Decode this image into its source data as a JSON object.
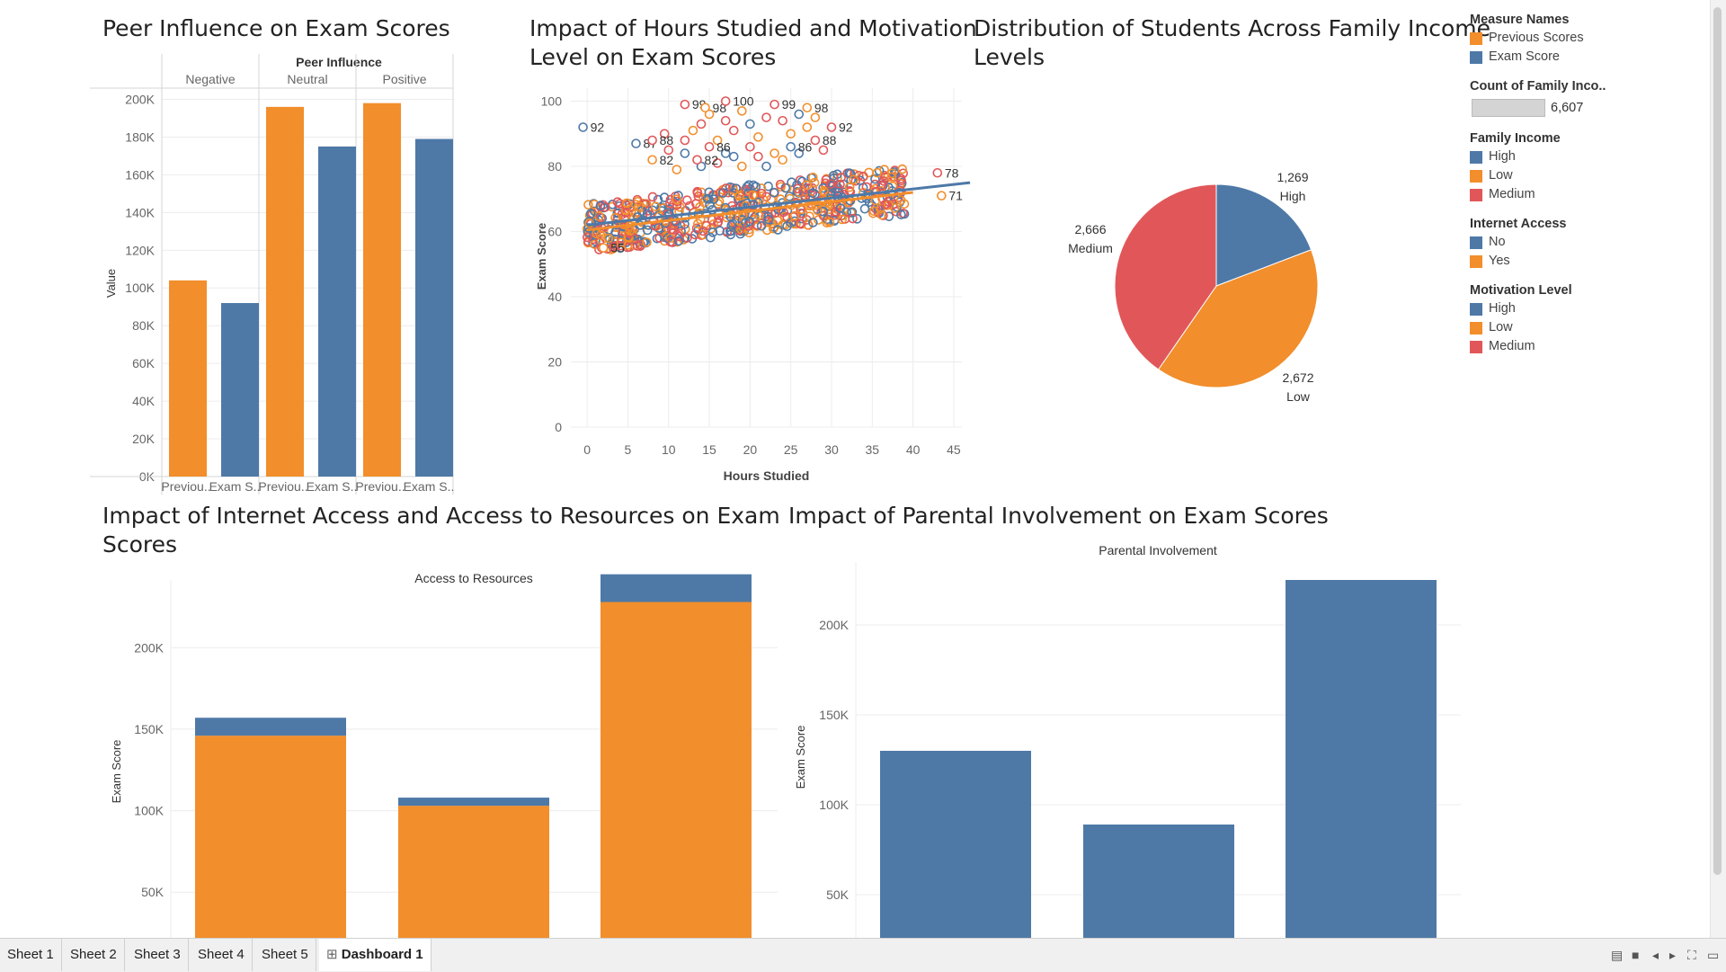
{
  "titles": {
    "peer": "Peer Influence on Exam Scores",
    "hours_line1": "Impact of Hours Studied and Motivation",
    "hours_line2": "Level on Exam Scores",
    "income_line1": "Distribution of Students Across Family Income",
    "income_line2": "Levels",
    "internet_line1": "Impact of Internet Access and Access to Resources on Exam",
    "internet_line2": "Scores",
    "parental": "Impact of Parental Involvement on Exam Scores"
  },
  "colors": {
    "blue": "#4e79a7",
    "orange": "#f28e2b",
    "red": "#e15759",
    "grid": "#ececec",
    "axis": "#d6d6d6",
    "text": "#666666"
  },
  "legend": {
    "measure_names": {
      "title": "Measure Names",
      "items": [
        {
          "label": "Previous Scores",
          "color": "#f28e2b"
        },
        {
          "label": "Exam Score",
          "color": "#4e79a7"
        }
      ]
    },
    "count": {
      "title": "Count of Family Inco..",
      "value": "6,607"
    },
    "family_income": {
      "title": "Family Income",
      "items": [
        {
          "label": "High",
          "color": "#4e79a7"
        },
        {
          "label": "Low",
          "color": "#f28e2b"
        },
        {
          "label": "Medium",
          "color": "#e15759"
        }
      ]
    },
    "internet_access": {
      "title": "Internet Access",
      "items": [
        {
          "label": "No",
          "color": "#4e79a7"
        },
        {
          "label": "Yes",
          "color": "#f28e2b"
        }
      ]
    },
    "motivation": {
      "title": "Motivation Level",
      "items": [
        {
          "label": "High",
          "color": "#4e79a7"
        },
        {
          "label": "Low",
          "color": "#f28e2b"
        },
        {
          "label": "Medium",
          "color": "#e15759"
        }
      ]
    }
  },
  "tabs": [
    {
      "label": "Sheet 1",
      "active": false
    },
    {
      "label": "Sheet 2",
      "active": false
    },
    {
      "label": "Sheet 3",
      "active": false
    },
    {
      "label": "Sheet 4",
      "active": false
    },
    {
      "label": "Sheet 5",
      "active": false
    },
    {
      "label": "Dashboard 1",
      "active": true,
      "icon": "dashboard-icon"
    }
  ],
  "chart_data": [
    {
      "id": "peer",
      "type": "bar",
      "header": "Peer Influence",
      "groups": [
        "Negative",
        "Neutral",
        "Positive"
      ],
      "measures": [
        "Previous Scores",
        "Exam Score"
      ],
      "tick_labels": [
        "Previou..",
        "Exam S.."
      ],
      "values": [
        [
          104000,
          92000
        ],
        [
          196000,
          175000
        ],
        [
          198000,
          179000
        ]
      ],
      "ylabel": "Value",
      "ylim": [
        0,
        205000
      ],
      "yticks": [
        0,
        20000,
        40000,
        60000,
        80000,
        100000,
        120000,
        140000,
        160000,
        180000,
        200000
      ],
      "ytick_labels": [
        "0K",
        "20K",
        "40K",
        "60K",
        "80K",
        "100K",
        "120K",
        "140K",
        "160K",
        "180K",
        "200K"
      ]
    },
    {
      "id": "hours",
      "type": "scatter",
      "xlabel": "Hours Studied",
      "ylabel": "Exam Score",
      "xlim": [
        -2,
        46
      ],
      "ylim": [
        0,
        104
      ],
      "xticks": [
        0,
        5,
        10,
        15,
        20,
        25,
        30,
        35,
        40,
        45
      ],
      "yticks": [
        0,
        20,
        40,
        60,
        80,
        100
      ],
      "trend_lines": [
        {
          "series": "High",
          "color": "#4e79a7",
          "from": [
            0,
            62
          ],
          "to": [
            47,
            75
          ]
        },
        {
          "series": "Low",
          "color": "#f28e2b",
          "from": [
            0,
            60.5
          ],
          "to": [
            40,
            72
          ]
        }
      ],
      "labeled_points": [
        {
          "x": -0.5,
          "y": 92,
          "label": "92",
          "motivation": "High"
        },
        {
          "x": 6,
          "y": 87,
          "label": "87",
          "motivation": "High"
        },
        {
          "x": 8,
          "y": 88,
          "label": "88",
          "motivation": "Medium"
        },
        {
          "x": 12,
          "y": 99,
          "label": "99",
          "motivation": "Medium"
        },
        {
          "x": 14.5,
          "y": 98,
          "label": "98",
          "motivation": "Low"
        },
        {
          "x": 17,
          "y": 100,
          "label": "100",
          "motivation": "Medium"
        },
        {
          "x": 23,
          "y": 99,
          "label": "99",
          "motivation": "Medium"
        },
        {
          "x": 27,
          "y": 98,
          "label": "98",
          "motivation": "Low"
        },
        {
          "x": 30,
          "y": 92,
          "label": "92",
          "motivation": "Medium"
        },
        {
          "x": 15,
          "y": 86,
          "label": "86",
          "motivation": "Medium"
        },
        {
          "x": 25,
          "y": 86,
          "label": "86",
          "motivation": "High"
        },
        {
          "x": 28,
          "y": 88,
          "label": "88",
          "motivation": "Medium"
        },
        {
          "x": 8,
          "y": 82,
          "label": "82",
          "motivation": "Low"
        },
        {
          "x": 13.5,
          "y": 82,
          "label": "82",
          "motivation": "Medium"
        },
        {
          "x": 2,
          "y": 55,
          "label": "55",
          "motivation": "Low"
        },
        {
          "x": 43,
          "y": 78,
          "label": "78",
          "motivation": "Medium"
        },
        {
          "x": 43.5,
          "y": 71,
          "label": "71",
          "motivation": "Low"
        }
      ],
      "extra_points": [
        [
          10,
          85,
          "Medium"
        ],
        [
          9.5,
          90,
          "Medium"
        ],
        [
          11,
          79,
          "Low"
        ],
        [
          12,
          84,
          "High"
        ],
        [
          13,
          91,
          "Low"
        ],
        [
          14,
          93,
          "Medium"
        ],
        [
          15,
          96,
          "Low"
        ],
        [
          16,
          88,
          "Low"
        ],
        [
          17,
          94,
          "Medium"
        ],
        [
          18,
          91,
          "Medium"
        ],
        [
          19,
          97,
          "Low"
        ],
        [
          20,
          93,
          "High"
        ],
        [
          21,
          89,
          "Low"
        ],
        [
          22,
          95,
          "Medium"
        ],
        [
          23,
          84,
          "Low"
        ],
        [
          24,
          94,
          "Medium"
        ],
        [
          25,
          90,
          "Low"
        ],
        [
          26,
          96,
          "High"
        ],
        [
          27,
          92,
          "Low"
        ],
        [
          28,
          95,
          "Low"
        ],
        [
          29,
          85,
          "Medium"
        ],
        [
          16,
          81,
          "Medium"
        ],
        [
          18,
          83,
          "High"
        ],
        [
          20,
          86,
          "Medium"
        ],
        [
          22,
          80,
          "High"
        ],
        [
          24,
          82,
          "Low"
        ],
        [
          14,
          80,
          "High"
        ],
        [
          12,
          88,
          "Medium"
        ],
        [
          21,
          83,
          "Medium"
        ],
        [
          26,
          84,
          "High"
        ],
        [
          19,
          80,
          "Low"
        ],
        [
          17,
          84,
          "High"
        ]
      ]
    },
    {
      "id": "income",
      "type": "pie",
      "slices": [
        {
          "label": "High",
          "value": 1269,
          "value_label": "1,269",
          "color": "#4e79a7"
        },
        {
          "label": "Low",
          "value": 2672,
          "value_label": "2,672",
          "color": "#f28e2b"
        },
        {
          "label": "Medium",
          "value": 2666,
          "value_label": "2,666",
          "color": "#e15759"
        }
      ]
    },
    {
      "id": "internet",
      "type": "bar",
      "stacked": true,
      "header": "Access to Resources",
      "ylabel": "Exam Score",
      "categories": [
        "",
        "",
        ""
      ],
      "series": [
        {
          "name": "Yes",
          "color": "#f28e2b",
          "values": [
            124000,
            81000,
            206000
          ]
        },
        {
          "name": "No",
          "color": "#4e79a7",
          "values": [
            11000,
            5000,
            17000
          ]
        }
      ],
      "ylim": [
        22000,
        236000
      ],
      "yticks": [
        50000,
        100000,
        150000,
        200000
      ],
      "ytick_labels": [
        "50K",
        "100K",
        "150K",
        "200K"
      ]
    },
    {
      "id": "parental",
      "type": "bar",
      "header": "Parental Involvement",
      "ylabel": "Exam Score",
      "categories": [
        "",
        "",
        ""
      ],
      "values": [
        130000,
        89000,
        225000
      ],
      "ylim": [
        26000,
        235000
      ],
      "yticks": [
        50000,
        100000,
        150000,
        200000
      ],
      "ytick_labels": [
        "50K",
        "100K",
        "150K",
        "200K"
      ]
    }
  ]
}
